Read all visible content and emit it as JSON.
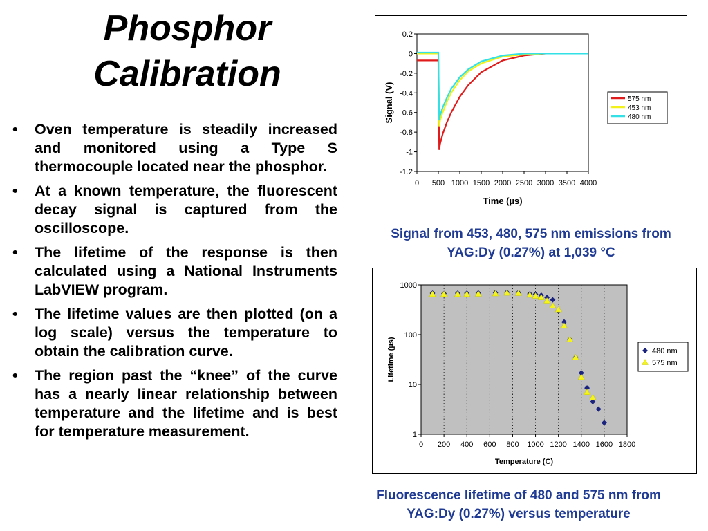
{
  "slide": {
    "title_line1": "Phosphor",
    "title_line2": "Calibration",
    "bullets": [
      "Oven temperature is steadily increased and monitored using a Type S thermocouple located near the phosphor.",
      "At a known temperature, the fluorescent decay signal is captured from the oscilloscope.",
      "The lifetime of the response is then calculated using a National Instruments LabVIEW program.",
      "The lifetime values are then plotted (on a log scale) versus the temperature to obtain the calibration curve.",
      "The region past the “knee” of the curve has a nearly linear relationship between temperature and the lifetime and is best for temperature measurement."
    ],
    "bullet_symbol": "•",
    "caption1": "Signal from 453, 480, 575 nm emissions from YAG:Dy (0.27%) at 1,039 °C",
    "caption2": "Fluorescence lifetime of 480 and 575 nm from YAG:Dy (0.27%) versus temperature",
    "caption_color": "#1f3a93"
  },
  "chart_data": [
    {
      "type": "line",
      "xlabel": "Time (µs)",
      "ylabel": "Signal (V)",
      "xlim": [
        0,
        4000
      ],
      "ylim": [
        -1.2,
        0.2
      ],
      "x_ticks": [
        0,
        500,
        1000,
        1500,
        2000,
        2500,
        3000,
        3500,
        4000
      ],
      "y_ticks": [
        0.2,
        0,
        -0.2,
        -0.4,
        -0.6,
        -0.8,
        -1,
        -1.2
      ],
      "grid": false,
      "legend_position": "right",
      "series": [
        {
          "name": "575 nm",
          "color": "#e01b1b",
          "x": [
            0,
            500,
            520,
            540,
            600,
            700,
            800,
            1000,
            1200,
            1500,
            2000,
            2500,
            3000,
            3500,
            4000
          ],
          "y": [
            -0.07,
            -0.07,
            -0.98,
            -0.92,
            -0.82,
            -0.7,
            -0.6,
            -0.44,
            -0.32,
            -0.19,
            -0.07,
            -0.02,
            0.0,
            0.0,
            0.0
          ]
        },
        {
          "name": "453 nm",
          "color": "#f2f21a",
          "x": [
            0,
            500,
            520,
            540,
            600,
            700,
            800,
            1000,
            1200,
            1500,
            2000,
            2500,
            3000,
            3500,
            4000
          ],
          "y": [
            0.0,
            0.0,
            -0.74,
            -0.68,
            -0.6,
            -0.49,
            -0.4,
            -0.27,
            -0.18,
            -0.1,
            -0.03,
            -0.01,
            0.0,
            0.0,
            0.0
          ]
        },
        {
          "name": "480 nm",
          "color": "#33e0e6",
          "x": [
            0,
            500,
            520,
            540,
            600,
            700,
            800,
            1000,
            1200,
            1500,
            2000,
            2500,
            3000,
            3500,
            4000
          ],
          "y": [
            0.01,
            0.01,
            -0.68,
            -0.63,
            -0.55,
            -0.45,
            -0.36,
            -0.24,
            -0.16,
            -0.08,
            -0.02,
            0.0,
            0.0,
            0.0,
            0.0
          ]
        }
      ]
    },
    {
      "type": "scatter",
      "xlabel": "Temperature (C)",
      "ylabel": "Lifetime (µs)",
      "xlim": [
        0,
        1800
      ],
      "ylim": [
        1,
        1000
      ],
      "log_y": true,
      "x_ticks": [
        0,
        200,
        400,
        600,
        800,
        1000,
        1200,
        1400,
        1600,
        1800
      ],
      "y_ticks": [
        1,
        10,
        100,
        1000
      ],
      "grid": true,
      "plot_background": "#c0c0c0",
      "legend_position": "right",
      "series": [
        {
          "name": "480 nm",
          "marker": "diamond",
          "color": "#1a237e",
          "x": [
            100,
            200,
            320,
            400,
            500,
            650,
            750,
            850,
            950,
            1000,
            1050,
            1100,
            1150,
            1200,
            1250,
            1300,
            1350,
            1400,
            1450,
            1500,
            1550,
            1600
          ],
          "y": [
            680,
            670,
            680,
            680,
            690,
            700,
            710,
            700,
            660,
            650,
            620,
            560,
            500,
            300,
            180,
            80,
            35,
            17,
            8.5,
            4.5,
            3.2,
            1.7
          ]
        },
        {
          "name": "575 nm",
          "marker": "triangle",
          "color": "#f5f51a",
          "x": [
            100,
            200,
            320,
            400,
            500,
            650,
            750,
            850,
            950,
            1000,
            1050,
            1100,
            1150,
            1200,
            1250,
            1300,
            1350,
            1400,
            1450,
            1500
          ],
          "y": [
            650,
            650,
            650,
            650,
            660,
            670,
            690,
            680,
            630,
            600,
            560,
            480,
            380,
            320,
            150,
            80,
            35,
            14,
            7,
            5.5
          ]
        }
      ]
    }
  ]
}
